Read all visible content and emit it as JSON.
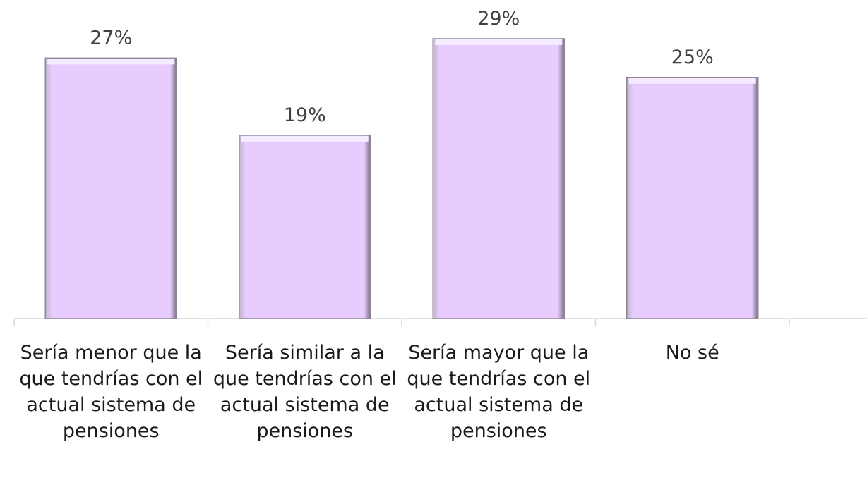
{
  "chart_data": {
    "type": "bar",
    "categories": [
      "Sería menor que la que tendrías con el actual sistema de pensiones",
      "Sería similar a la que tendrías con el actual sistema de pensiones",
      "Sería mayor que la que tendrías con el actual sistema de pensiones",
      "No sé"
    ],
    "values": [
      27,
      19,
      29,
      25
    ],
    "value_labels": [
      "27%",
      "19%",
      "29%",
      "25%"
    ],
    "color": "#e8ccff"
  }
}
